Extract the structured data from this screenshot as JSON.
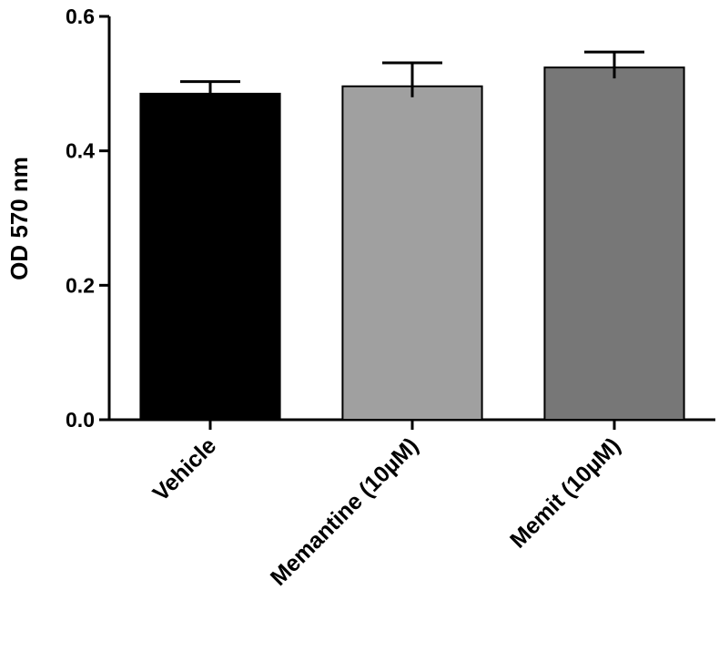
{
  "chart_data": {
    "type": "bar",
    "ylabel": "OD 570 nm",
    "categories": [
      "Vehicle",
      "Memantine (10µM)",
      "Memit (10µM)"
    ],
    "values": [
      0.485,
      0.496,
      0.524
    ],
    "errors": [
      0.018,
      0.035,
      0.023
    ],
    "colors": [
      "#000000",
      "#a0a0a0",
      "#777777"
    ],
    "ylim": [
      0,
      0.6
    ],
    "yticks": [
      {
        "value": 0,
        "label": "0.0"
      },
      0.2,
      0.4,
      0.6
    ],
    "grid": false
  }
}
